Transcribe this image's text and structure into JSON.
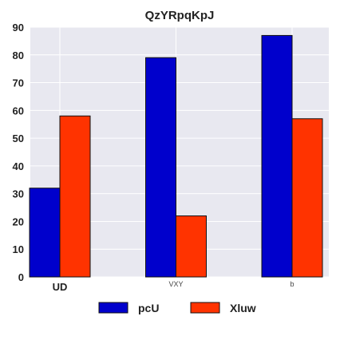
{
  "chart_data": {
    "type": "bar",
    "title": "QzYRpqKpJ",
    "xlabel": "",
    "ylabel": "",
    "categories": [
      "UD",
      "VXY",
      "b"
    ],
    "series": [
      {
        "name": "pcU",
        "values": [
          32,
          79,
          87
        ],
        "color": "#0000cc"
      },
      {
        "name": "Xluw",
        "values": [
          58,
          22,
          57
        ],
        "color": "#ff3300"
      }
    ],
    "ylim": [
      0,
      90
    ],
    "yticks": [
      0,
      10,
      20,
      30,
      40,
      50,
      60,
      70,
      80,
      90
    ],
    "grid": true,
    "legend_position": "bottom",
    "background": "#e8e8f0"
  }
}
